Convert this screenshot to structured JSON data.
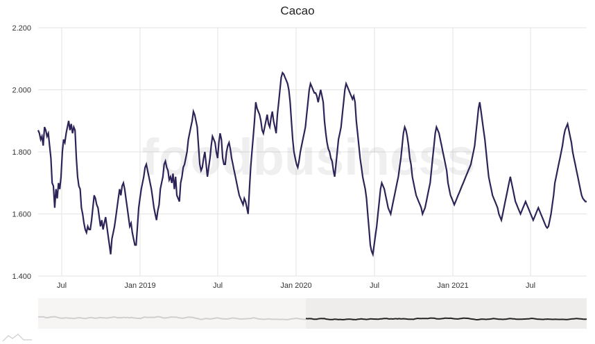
{
  "chart_data": {
    "type": "line",
    "title": "Cacao",
    "watermark": "foodbusiness",
    "ylim": [
      1400,
      2200
    ],
    "yticks": [
      "1.400",
      "1.600",
      "1.800",
      "2.000",
      "2.200"
    ],
    "xticks": [
      "Jul",
      "Jan 2019",
      "Jul",
      "Jan 2020",
      "Jul",
      "Jan 2021",
      "Jul"
    ],
    "line_color": "#2e2357",
    "grid": true,
    "navigator": true,
    "series": [
      {
        "values": [
          1870,
          1860,
          1840,
          1850,
          1820,
          1880,
          1870,
          1850,
          1860,
          1820,
          1780,
          1700,
          1690,
          1620,
          1680,
          1650,
          1700,
          1680,
          1720,
          1800,
          1840,
          1830,
          1860,
          1880,
          1900,
          1870,
          1890,
          1860,
          1880,
          1870,
          1780,
          1720,
          1690,
          1680,
          1620,
          1600,
          1570,
          1550,
          1540,
          1560,
          1550,
          1550,
          1580,
          1620,
          1660,
          1650,
          1630,
          1620,
          1590,
          1560,
          1580,
          1550,
          1570,
          1590,
          1560,
          1530,
          1500,
          1470,
          1520,
          1540,
          1560,
          1590,
          1620,
          1650,
          1680,
          1660,
          1690,
          1700,
          1680,
          1650,
          1620,
          1590,
          1560,
          1570,
          1540,
          1520,
          1500,
          1500,
          1560,
          1620,
          1650,
          1680,
          1700,
          1720,
          1750,
          1760,
          1740,
          1720,
          1700,
          1680,
          1650,
          1620,
          1600,
          1580,
          1610,
          1630,
          1680,
          1700,
          1720,
          1760,
          1770,
          1750,
          1740,
          1710,
          1720,
          1700,
          1730,
          1680,
          1720,
          1660,
          1650,
          1640,
          1700,
          1720,
          1750,
          1760,
          1780,
          1800,
          1840,
          1860,
          1880,
          1900,
          1930,
          1920,
          1900,
          1880,
          1820,
          1760,
          1740,
          1750,
          1780,
          1800,
          1760,
          1720,
          1750,
          1780,
          1820,
          1850,
          1840,
          1830,
          1800,
          1780,
          1830,
          1860,
          1840,
          1780,
          1760,
          1760,
          1800,
          1820,
          1830,
          1810,
          1780,
          1760,
          1740,
          1720,
          1700,
          1680,
          1660,
          1650,
          1640,
          1630,
          1650,
          1640,
          1620,
          1600,
          1680,
          1750,
          1800,
          1850,
          1900,
          1960,
          1940,
          1930,
          1920,
          1900,
          1870,
          1860,
          1880,
          1900,
          1920,
          1890,
          1880,
          1910,
          1930,
          1900,
          1880,
          1860,
          1920,
          1960,
          2000,
          2040,
          2055,
          2050,
          2040,
          2030,
          2020,
          2000,
          1960,
          1900,
          1840,
          1800,
          1780,
          1760,
          1750,
          1770,
          1800,
          1820,
          1840,
          1860,
          1880,
          1920,
          1960,
          2000,
          2020,
          2010,
          2000,
          1990,
          1990,
          1980,
          1960,
          1980,
          2000,
          1980,
          1960,
          1900,
          1860,
          1830,
          1810,
          1800,
          1780,
          1770,
          1740,
          1720,
          1760,
          1800,
          1840,
          1860,
          1880,
          1920,
          1960,
          2000,
          2020,
          2010,
          2000,
          1990,
          1980,
          1970,
          1980,
          1960,
          1900,
          1860,
          1820,
          1780,
          1750,
          1720,
          1700,
          1680,
          1650,
          1600,
          1550,
          1500,
          1480,
          1470,
          1500,
          1530,
          1560,
          1600,
          1640,
          1680,
          1700,
          1690,
          1680,
          1660,
          1640,
          1620,
          1610,
          1600,
          1620,
          1640,
          1660,
          1680,
          1700,
          1720,
          1750,
          1780,
          1820,
          1860,
          1880,
          1870,
          1850,
          1820,
          1780,
          1760,
          1720,
          1700,
          1680,
          1660,
          1650,
          1640,
          1630,
          1620,
          1600,
          1610,
          1620,
          1640,
          1660,
          1680,
          1700,
          1740,
          1780,
          1820,
          1860,
          1880,
          1870,
          1860,
          1840,
          1820,
          1800,
          1780,
          1760,
          1740,
          1700,
          1680,
          1660,
          1650,
          1640,
          1630,
          1640,
          1650,
          1660,
          1670,
          1680,
          1690,
          1700,
          1710,
          1720,
          1730,
          1740,
          1750,
          1760,
          1780,
          1800,
          1820,
          1860,
          1900,
          1940,
          1960,
          1930,
          1900,
          1870,
          1840,
          1800,
          1760,
          1720,
          1700,
          1680,
          1660,
          1650,
          1640,
          1630,
          1620,
          1600,
          1590,
          1580,
          1600,
          1620,
          1640,
          1660,
          1680,
          1700,
          1720,
          1700,
          1680,
          1660,
          1640,
          1630,
          1620,
          1610,
          1600,
          1610,
          1620,
          1630,
          1640,
          1630,
          1620,
          1610,
          1600,
          1590,
          1580,
          1590,
          1600,
          1610,
          1620,
          1610,
          1600,
          1590,
          1580,
          1570,
          1560,
          1555,
          1560,
          1580,
          1600,
          1630,
          1660,
          1700,
          1720,
          1740,
          1760,
          1780,
          1800,
          1820,
          1850,
          1870,
          1880,
          1890,
          1870,
          1850,
          1830,
          1800,
          1780,
          1760,
          1740,
          1720,
          1700,
          1680,
          1660,
          1650,
          1645,
          1640,
          1640
        ]
      }
    ]
  }
}
